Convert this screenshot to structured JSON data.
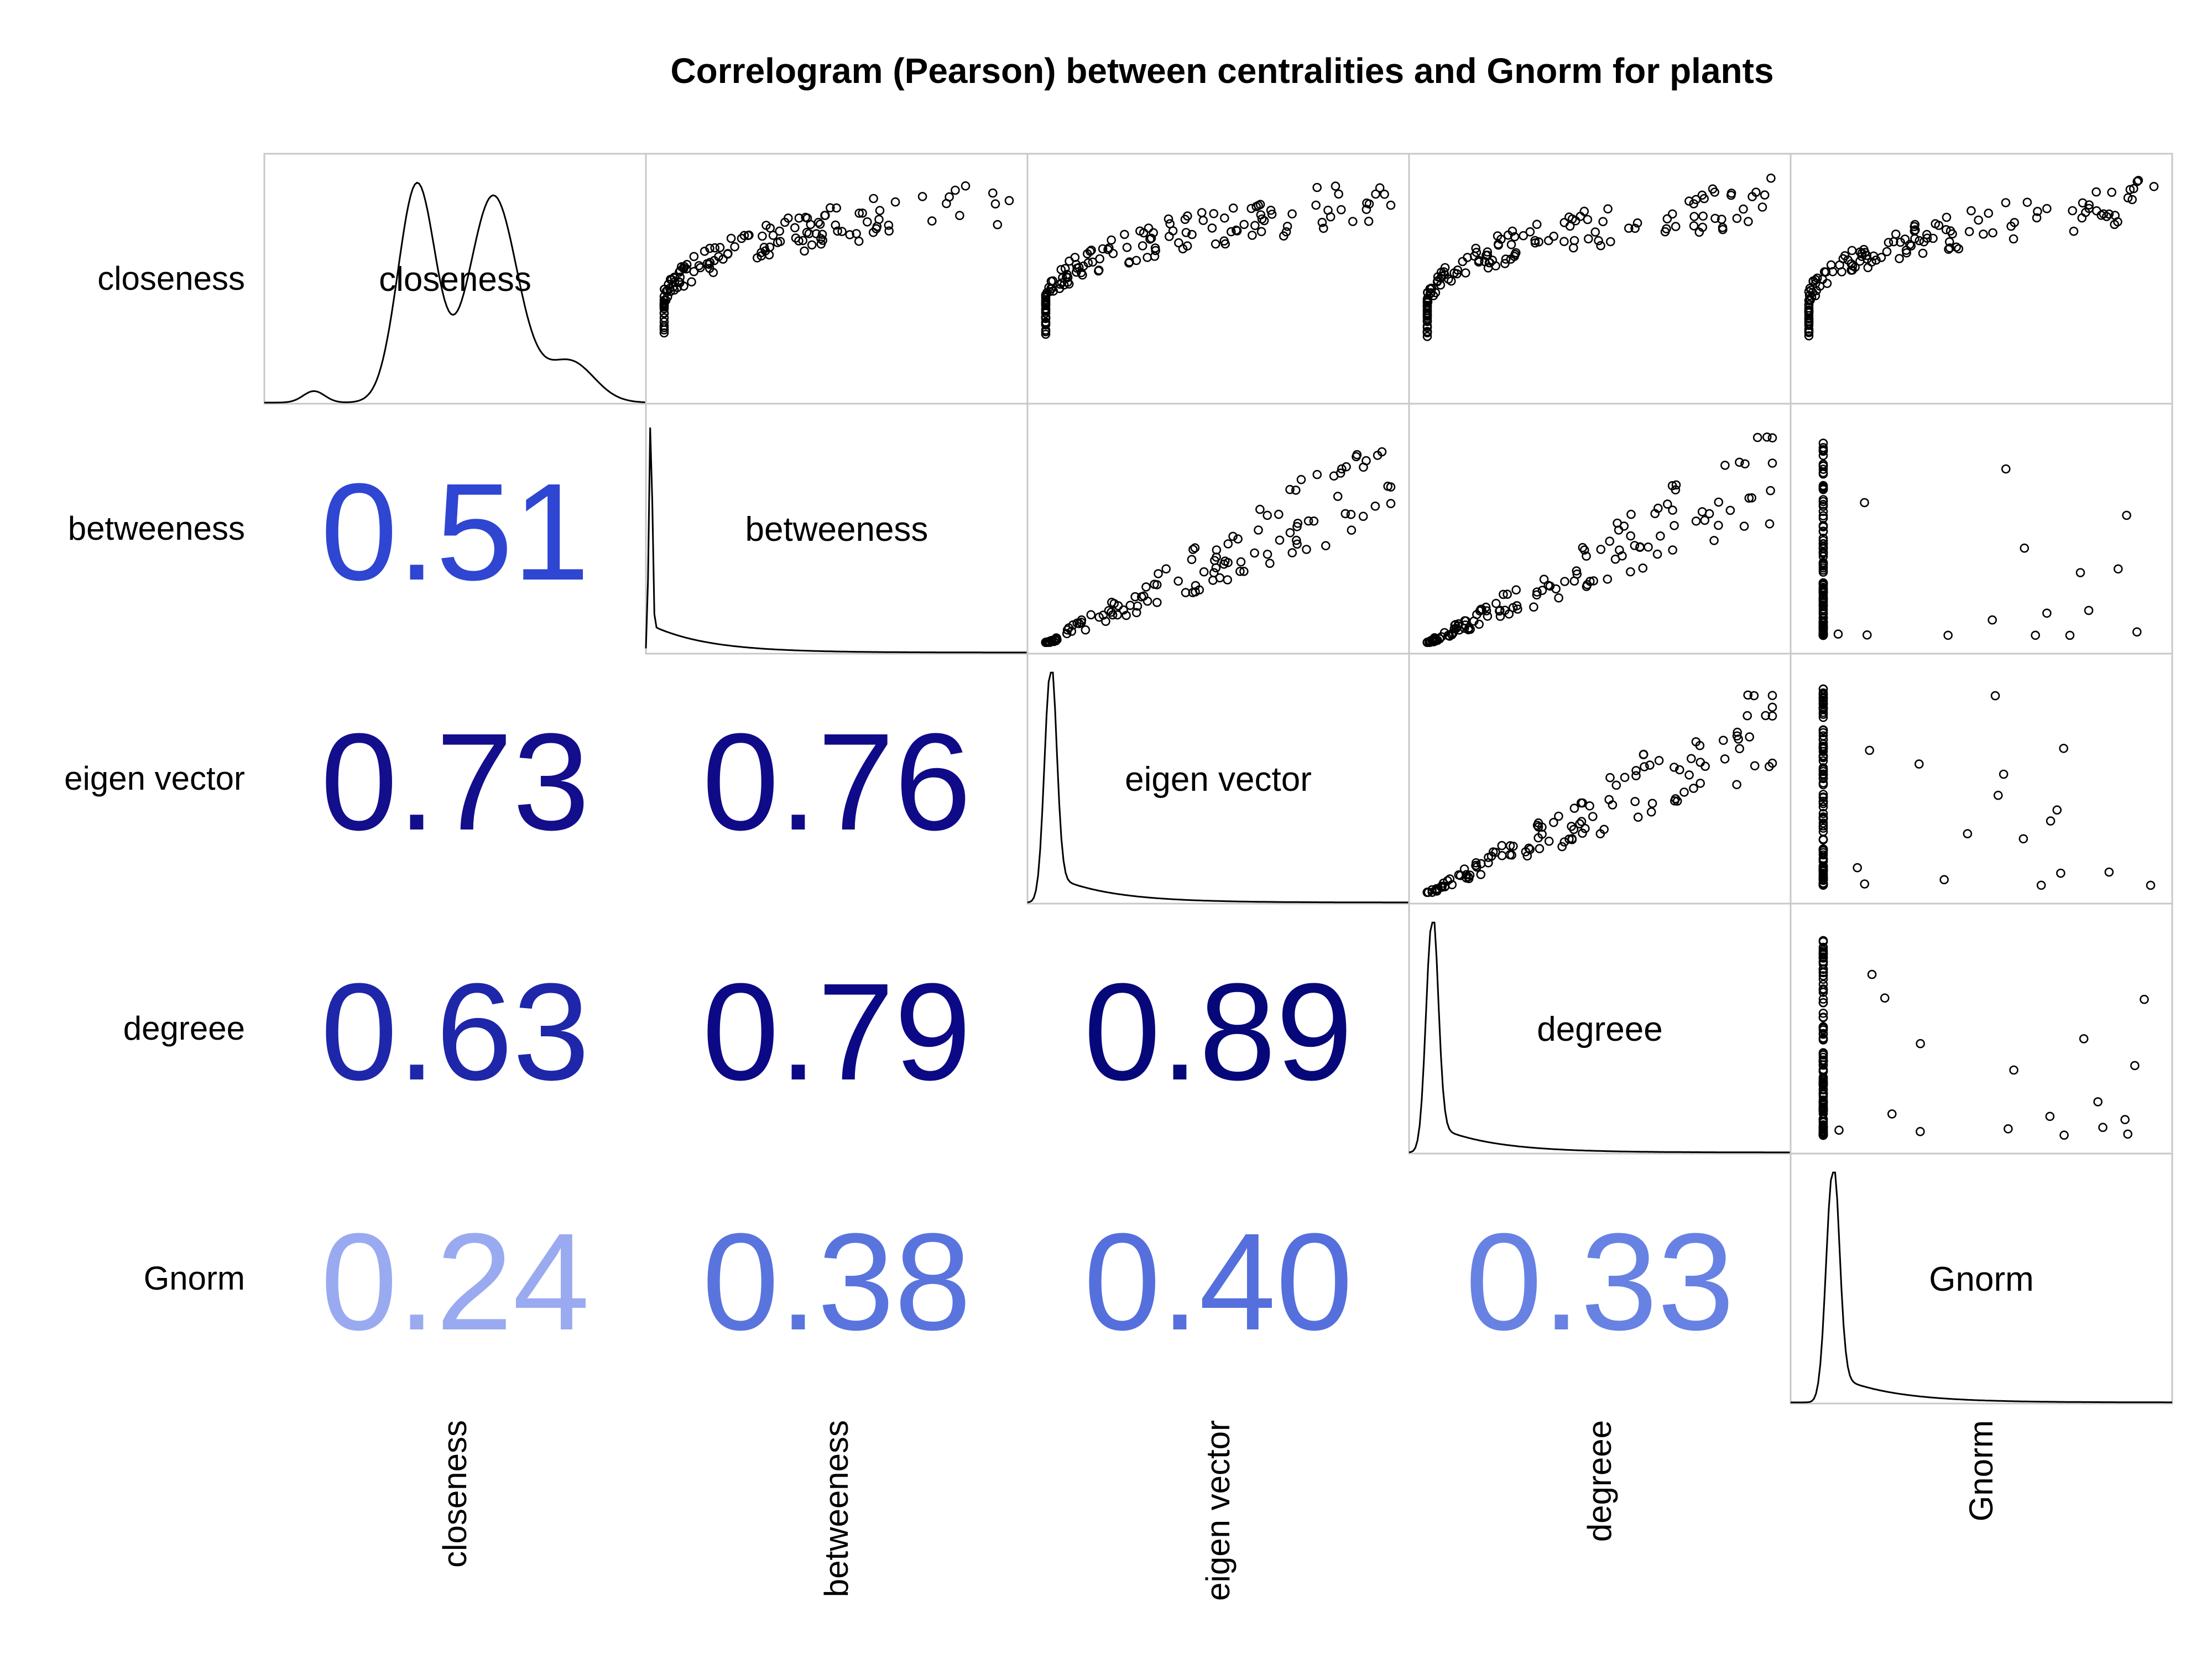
{
  "chart_data": {
    "type": "correlogram",
    "title": "Correlogram (Pearson) between centralities and Gnorm for plants",
    "variables": [
      "closeness",
      "betweeness",
      "eigen vector",
      "degreee",
      "Gnorm"
    ],
    "correlations": [
      {
        "row": "betweeness",
        "col": "closeness",
        "value": 0.51,
        "label": "0.51",
        "color": "#2e46d1"
      },
      {
        "row": "eigen vector",
        "col": "closeness",
        "value": 0.73,
        "label": "0.73",
        "color": "#120e8c"
      },
      {
        "row": "eigen vector",
        "col": "betweeness",
        "value": 0.76,
        "label": "0.76",
        "color": "#0f0b88"
      },
      {
        "row": "degreee",
        "col": "closeness",
        "value": 0.63,
        "label": "0.63",
        "color": "#1e26aa"
      },
      {
        "row": "degreee",
        "col": "betweeness",
        "value": 0.79,
        "label": "0.79",
        "color": "#0c0986"
      },
      {
        "row": "degreee",
        "col": "eigen vector",
        "value": 0.89,
        "label": "0.89",
        "color": "#06087a"
      },
      {
        "row": "Gnorm",
        "col": "closeness",
        "value": 0.24,
        "label": "0.24",
        "color": "#9aaaf0"
      },
      {
        "row": "Gnorm",
        "col": "betweeness",
        "value": 0.38,
        "label": "0.38",
        "color": "#5a74de"
      },
      {
        "row": "Gnorm",
        "col": "eigen vector",
        "value": 0.4,
        "label": "0.40",
        "color": "#5570dc"
      },
      {
        "row": "Gnorm",
        "col": "degreee",
        "value": 0.33,
        "label": "0.33",
        "color": "#6782e2"
      }
    ],
    "upper_panels": "scatter",
    "diagonal_panels": "density",
    "grid": false
  }
}
